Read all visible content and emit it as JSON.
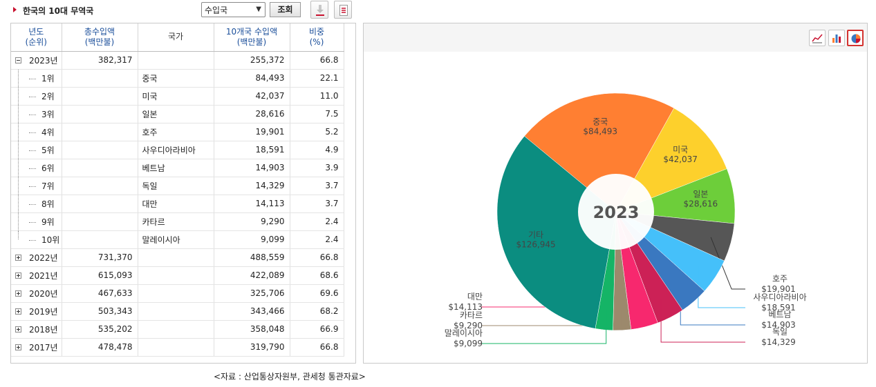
{
  "header": {
    "title": "한국의 10대 무역국",
    "select_value": "수입국",
    "query_button": "조회"
  },
  "table": {
    "headers": [
      [
        "년도",
        "(순위)"
      ],
      [
        "총수입액",
        "(백만불)"
      ],
      [
        "국가"
      ],
      [
        "10개국 수입액",
        "(백만불)"
      ],
      [
        "비중",
        "(%)"
      ]
    ],
    "rows": [
      {
        "kind": "year",
        "expander": "minus",
        "label": "2023년",
        "total": "382,317",
        "country": "",
        "amount": "255,372",
        "share": "66.8"
      },
      {
        "kind": "rank",
        "label": "1위",
        "total": "",
        "country": "중국",
        "amount": "84,493",
        "share": "22.1"
      },
      {
        "kind": "rank",
        "label": "2위",
        "total": "",
        "country": "미국",
        "amount": "42,037",
        "share": "11.0"
      },
      {
        "kind": "rank",
        "label": "3위",
        "total": "",
        "country": "일본",
        "amount": "28,616",
        "share": "7.5"
      },
      {
        "kind": "rank",
        "label": "4위",
        "total": "",
        "country": "호주",
        "amount": "19,901",
        "share": "5.2"
      },
      {
        "kind": "rank",
        "label": "5위",
        "total": "",
        "country": "사우디아라비아",
        "amount": "18,591",
        "share": "4.9"
      },
      {
        "kind": "rank",
        "label": "6위",
        "total": "",
        "country": "베트남",
        "amount": "14,903",
        "share": "3.9"
      },
      {
        "kind": "rank",
        "label": "7위",
        "total": "",
        "country": "독일",
        "amount": "14,329",
        "share": "3.7"
      },
      {
        "kind": "rank",
        "label": "8위",
        "total": "",
        "country": "대만",
        "amount": "14,113",
        "share": "3.7"
      },
      {
        "kind": "rank",
        "label": "9위",
        "total": "",
        "country": "카타르",
        "amount": "9,290",
        "share": "2.4"
      },
      {
        "kind": "rank",
        "label": "10위",
        "total": "",
        "country": "말레이시아",
        "amount": "9,099",
        "share": "2.4",
        "last": true
      },
      {
        "kind": "year",
        "expander": "plus",
        "label": "2022년",
        "total": "731,370",
        "country": "",
        "amount": "488,559",
        "share": "66.8"
      },
      {
        "kind": "year",
        "expander": "plus",
        "label": "2021년",
        "total": "615,093",
        "country": "",
        "amount": "422,089",
        "share": "68.6"
      },
      {
        "kind": "year",
        "expander": "plus",
        "label": "2020년",
        "total": "467,633",
        "country": "",
        "amount": "325,706",
        "share": "69.6"
      },
      {
        "kind": "year",
        "expander": "plus",
        "label": "2019년",
        "total": "503,343",
        "country": "",
        "amount": "343,466",
        "share": "68.2"
      },
      {
        "kind": "year",
        "expander": "plus",
        "label": "2018년",
        "total": "535,202",
        "country": "",
        "amount": "358,048",
        "share": "66.9"
      },
      {
        "kind": "year",
        "expander": "plus",
        "label": "2017년",
        "total": "478,478",
        "country": "",
        "amount": "319,790",
        "share": "66.8"
      }
    ]
  },
  "source_note": "<자료 : 산업통상자원부, 관세청 통관자료>",
  "chart_data": {
    "type": "pie",
    "center_label": "2023",
    "slices": [
      {
        "name": "중국",
        "label_value": "$84,493",
        "value": 84493,
        "color": "#ff7f32",
        "label_pos": "inside"
      },
      {
        "name": "미국",
        "label_value": "$42,037",
        "value": 42037,
        "color": "#fdd02c",
        "label_pos": "inside"
      },
      {
        "name": "일본",
        "label_value": "$28,616",
        "value": 28616,
        "color": "#6dce3a",
        "label_pos": "inside"
      },
      {
        "name": "호주",
        "label_value": "$19,901",
        "value": 19901,
        "color": "#565656",
        "label_pos": "right"
      },
      {
        "name": "사우디아라비아",
        "label_value": "$18,591",
        "value": 18591,
        "color": "#45c0fa",
        "label_pos": "right"
      },
      {
        "name": "베트남",
        "label_value": "$14,903",
        "value": 14903,
        "color": "#3a78c0",
        "label_pos": "right"
      },
      {
        "name": "독일",
        "label_value": "$14,329",
        "value": 14329,
        "color": "#cc2156",
        "label_pos": "right"
      },
      {
        "name": "대만",
        "label_value": "$14,113",
        "value": 14113,
        "color": "#f7286e",
        "label_pos": "left"
      },
      {
        "name": "카타르",
        "label_value": "$9,290",
        "value": 9290,
        "color": "#9c896c",
        "label_pos": "left"
      },
      {
        "name": "말레이시아",
        "label_value": "$9,099",
        "value": 9099,
        "color": "#15b466",
        "label_pos": "left"
      },
      {
        "name": "기타",
        "label_value": "$126,945",
        "value": 126945,
        "color": "#0b8d80",
        "label_pos": "inside"
      }
    ]
  }
}
